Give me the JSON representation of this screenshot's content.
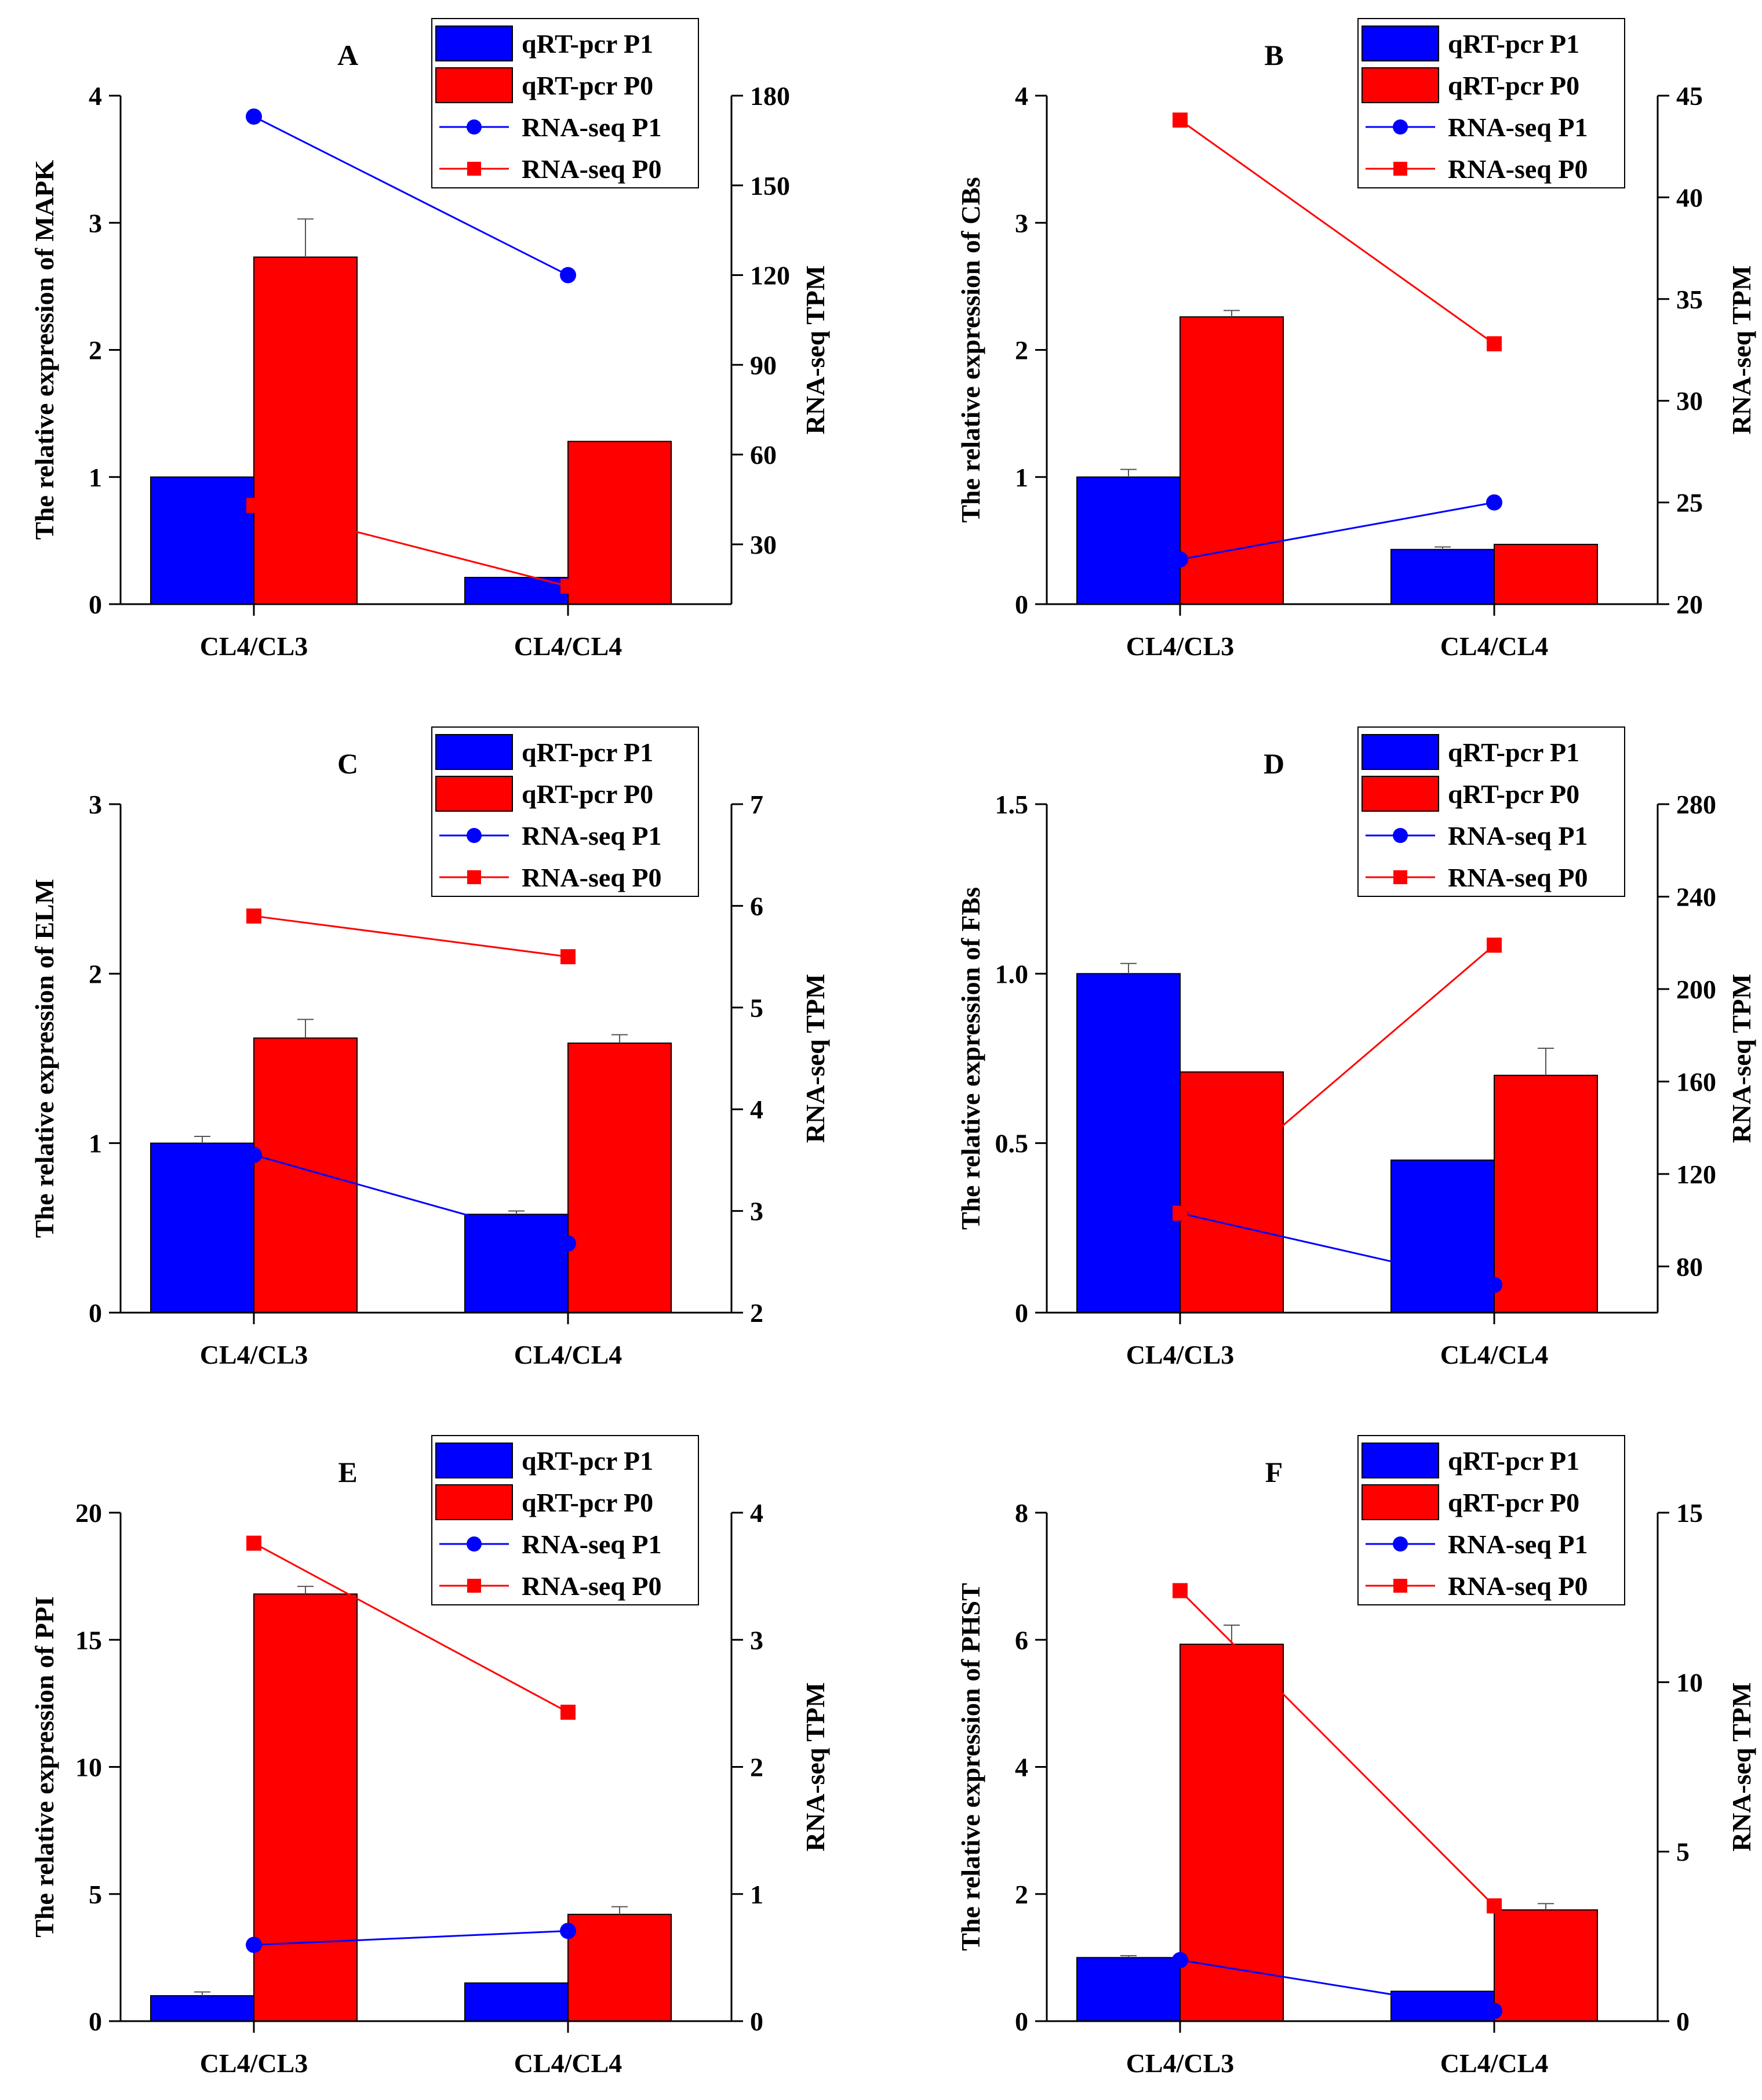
{
  "colors": {
    "blue": "#0000ff",
    "red": "#ff0000",
    "axis": "#000000"
  },
  "legend_labels": {
    "bar_p1": "qRT-pcr P1",
    "bar_p0": "qRT-pcr P0",
    "line_p1": "RNA-seq P1",
    "line_p0": "RNA-seq P0"
  },
  "chart_data": [
    {
      "panel": "A",
      "type": "bar+line",
      "title": "A",
      "categories": [
        "CL4/CL3",
        "CL4/CL4"
      ],
      "ylabel": "The relative expression of MAPK",
      "y2label": "RNA-seq TPM",
      "ylim": [
        0,
        4
      ],
      "yticks": [
        0,
        1,
        2,
        3,
        4
      ],
      "y2lim": [
        10,
        180
      ],
      "y2ticks": [
        30,
        60,
        90,
        120,
        150,
        180
      ],
      "series": [
        {
          "name": "qRT-pcr P1",
          "kind": "bar",
          "axis": "left",
          "values": [
            1.0,
            0.21
          ],
          "errors": [
            0,
            0
          ]
        },
        {
          "name": "qRT-pcr P0",
          "kind": "bar",
          "axis": "left",
          "values": [
            2.73,
            1.28
          ],
          "errors": [
            0.3,
            0
          ]
        },
        {
          "name": "RNA-seq P1",
          "kind": "line",
          "marker": "circle",
          "axis": "right",
          "values": [
            173,
            120
          ]
        },
        {
          "name": "RNA-seq P0",
          "kind": "line",
          "marker": "square",
          "axis": "right",
          "values": [
            43,
            16
          ]
        }
      ]
    },
    {
      "panel": "B",
      "type": "bar+line",
      "title": "B",
      "categories": [
        "CL4/CL3",
        "CL4/CL4"
      ],
      "ylabel": "The relative expression of CBs",
      "y2label": "RNA-seq TPM",
      "ylim": [
        0,
        4
      ],
      "yticks": [
        0,
        1,
        2,
        3,
        4
      ],
      "y2lim": [
        20,
        45
      ],
      "y2ticks": [
        20,
        25,
        30,
        35,
        40,
        45
      ],
      "series": [
        {
          "name": "qRT-pcr P1",
          "kind": "bar",
          "axis": "left",
          "values": [
            1.0,
            0.43
          ],
          "errors": [
            0.06,
            0.02
          ]
        },
        {
          "name": "qRT-pcr P0",
          "kind": "bar",
          "axis": "left",
          "values": [
            2.26,
            0.47
          ],
          "errors": [
            0.05,
            0
          ]
        },
        {
          "name": "RNA-seq P1",
          "kind": "line",
          "marker": "circle",
          "axis": "right",
          "values": [
            22.2,
            25.0
          ]
        },
        {
          "name": "RNA-seq P0",
          "kind": "line",
          "marker": "square",
          "axis": "right",
          "values": [
            43.8,
            32.8
          ]
        }
      ]
    },
    {
      "panel": "C",
      "type": "bar+line",
      "title": "C",
      "categories": [
        "CL4/CL3",
        "CL4/CL4"
      ],
      "ylabel": "The relative expression of ELM",
      "y2label": "RNA-seq TPM",
      "ylim": [
        0,
        3
      ],
      "yticks": [
        0,
        1,
        2,
        3
      ],
      "y2lim": [
        2,
        7
      ],
      "y2ticks": [
        2,
        3,
        4,
        5,
        6,
        7
      ],
      "series": [
        {
          "name": "qRT-pcr P1",
          "kind": "bar",
          "axis": "left",
          "values": [
            1.0,
            0.58
          ],
          "errors": [
            0.04,
            0.02
          ]
        },
        {
          "name": "qRT-pcr P0",
          "kind": "bar",
          "axis": "left",
          "values": [
            1.62,
            1.59
          ],
          "errors": [
            0.11,
            0.05
          ]
        },
        {
          "name": "RNA-seq P1",
          "kind": "line",
          "marker": "circle",
          "axis": "right",
          "values": [
            3.55,
            2.68
          ]
        },
        {
          "name": "RNA-seq P0",
          "kind": "line",
          "marker": "square",
          "axis": "right",
          "values": [
            5.9,
            5.5
          ]
        }
      ]
    },
    {
      "panel": "D",
      "type": "bar+line",
      "title": "D",
      "categories": [
        "CL4/CL3",
        "CL4/CL4"
      ],
      "ylabel": "The relative expression of FBs",
      "y2label": "RNA-seq TPM",
      "ylim": [
        0,
        1.5
      ],
      "yticks": [
        0,
        0.5,
        1.0,
        1.5
      ],
      "ytick_labels": [
        "0",
        "0.5",
        "1.0",
        "1.5"
      ],
      "y2lim": [
        60,
        280
      ],
      "y2ticks": [
        80,
        120,
        160,
        200,
        240,
        280
      ],
      "series": [
        {
          "name": "qRT-pcr P1",
          "kind": "bar",
          "axis": "left",
          "values": [
            1.0,
            0.45
          ],
          "errors": [
            0.03,
            0
          ]
        },
        {
          "name": "qRT-pcr P0",
          "kind": "bar",
          "axis": "left",
          "values": [
            0.71,
            0.7
          ],
          "errors": [
            0,
            0.08
          ]
        },
        {
          "name": "RNA-seq P1",
          "kind": "line",
          "marker": "circle",
          "axis": "right",
          "values": [
            103,
            72
          ]
        },
        {
          "name": "RNA-seq P0",
          "kind": "line",
          "marker": "square",
          "axis": "right",
          "values": [
            103,
            219
          ]
        }
      ]
    },
    {
      "panel": "E",
      "type": "bar+line",
      "title": "E",
      "categories": [
        "CL4/CL3",
        "CL4/CL4"
      ],
      "ylabel": "The relative expression of PPI",
      "y2label": "RNA-seq TPM",
      "ylim": [
        0,
        20
      ],
      "yticks": [
        0,
        5,
        10,
        15,
        20
      ],
      "y2lim": [
        0,
        4
      ],
      "y2ticks": [
        0,
        1,
        2,
        3,
        4
      ],
      "series": [
        {
          "name": "qRT-pcr P1",
          "kind": "bar",
          "axis": "left",
          "values": [
            1.0,
            1.5
          ],
          "errors": [
            0.15,
            0
          ]
        },
        {
          "name": "qRT-pcr P0",
          "kind": "bar",
          "axis": "left",
          "values": [
            16.8,
            4.2
          ],
          "errors": [
            0.3,
            0.3
          ]
        },
        {
          "name": "RNA-seq P1",
          "kind": "line",
          "marker": "circle",
          "axis": "right",
          "values": [
            0.6,
            0.71
          ]
        },
        {
          "name": "RNA-seq P0",
          "kind": "line",
          "marker": "square",
          "axis": "right",
          "values": [
            3.76,
            2.43
          ]
        }
      ]
    },
    {
      "panel": "F",
      "type": "bar+line",
      "title": "F",
      "categories": [
        "CL4/CL3",
        "CL4/CL4"
      ],
      "ylabel": "The relative expression of PHST",
      "y2label": "RNA-seq TPM",
      "ylim": [
        0,
        8
      ],
      "yticks": [
        0,
        2,
        4,
        6,
        8
      ],
      "y2lim": [
        0,
        15
      ],
      "y2ticks": [
        0,
        5,
        10,
        15
      ],
      "series": [
        {
          "name": "qRT-pcr P1",
          "kind": "bar",
          "axis": "left",
          "values": [
            1.0,
            0.47
          ],
          "errors": [
            0.03,
            0
          ]
        },
        {
          "name": "qRT-pcr P0",
          "kind": "bar",
          "axis": "left",
          "values": [
            5.93,
            1.75
          ],
          "errors": [
            0.3,
            0.1
          ]
        },
        {
          "name": "RNA-seq P1",
          "kind": "line",
          "marker": "circle",
          "axis": "right",
          "values": [
            1.8,
            0.3
          ]
        },
        {
          "name": "RNA-seq P0",
          "kind": "line",
          "marker": "square",
          "axis": "right",
          "values": [
            12.7,
            3.4
          ]
        }
      ]
    }
  ]
}
